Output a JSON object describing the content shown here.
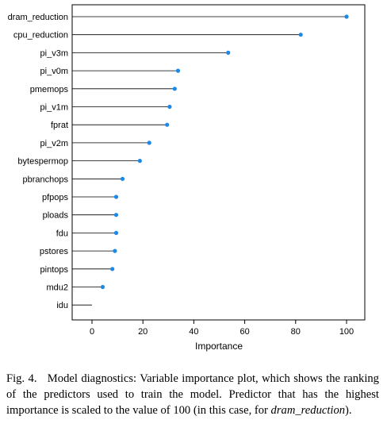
{
  "chart_data": {
    "type": "lollipop",
    "xlabel": "Importance",
    "xlim": [
      0,
      100
    ],
    "xticks": [
      0,
      20,
      40,
      60,
      80,
      100
    ],
    "point_color": "#1e88e5",
    "variables": [
      {
        "name": "dram_reduction",
        "value": 100
      },
      {
        "name": "cpu_reduction",
        "value": 82
      },
      {
        "name": "pi_v3m",
        "value": 53.5
      },
      {
        "name": "pi_v0m",
        "value": 33.8
      },
      {
        "name": "pmemops",
        "value": 32.5
      },
      {
        "name": "pi_v1m",
        "value": 30.5
      },
      {
        "name": "fprat",
        "value": 29.5
      },
      {
        "name": "pi_v2m",
        "value": 22.5
      },
      {
        "name": "bytespermop",
        "value": 18.8
      },
      {
        "name": "pbranchops",
        "value": 12
      },
      {
        "name": "pfpops",
        "value": 9.5
      },
      {
        "name": "ploads",
        "value": 9.5
      },
      {
        "name": "fdu",
        "value": 9.5
      },
      {
        "name": "pstores",
        "value": 9
      },
      {
        "name": "pintops",
        "value": 8
      },
      {
        "name": "mdu2",
        "value": 4.2
      },
      {
        "name": "idu",
        "value": 0
      }
    ]
  },
  "caption": {
    "label": "Fig. 4.",
    "text": "Model diagnostics: Variable importance plot, which shows the ranking of the predictors used to train the model. Predictor that has the highest importance is scaled to the value of 100 (in this case, for",
    "emphasis": "dram_reduction",
    "tail": ")."
  }
}
